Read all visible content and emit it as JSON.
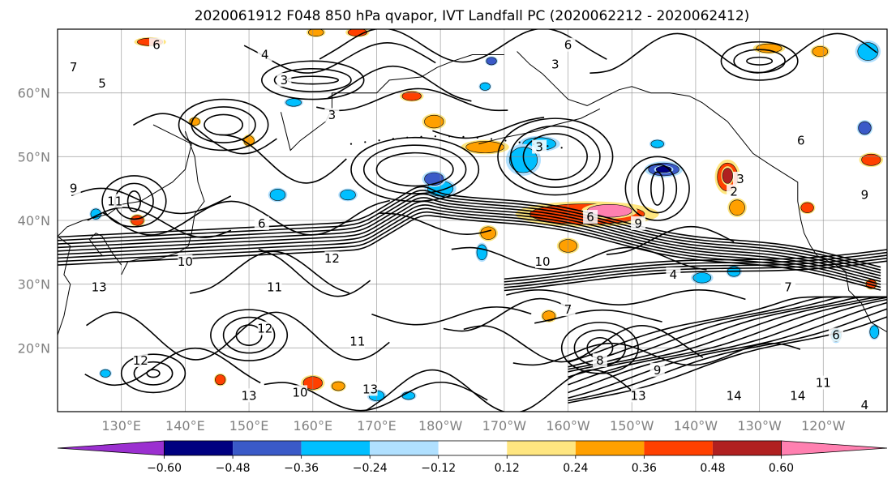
{
  "title": "2020061912 F048 850 hPa qvapor, IVT Landfall PC (2020062212 - 2020062412)",
  "lat_ticks": [
    {
      "value": 20,
      "label": "20°N"
    },
    {
      "value": 30,
      "label": "30°N"
    },
    {
      "value": 40,
      "label": "40°N"
    },
    {
      "value": 50,
      "label": "50°N"
    },
    {
      "value": 60,
      "label": "60°N"
    }
  ],
  "lon_ticks": [
    {
      "value": 130,
      "label": "130°E"
    },
    {
      "value": 140,
      "label": "140°E"
    },
    {
      "value": 150,
      "label": "150°E"
    },
    {
      "value": 160,
      "label": "160°E"
    },
    {
      "value": 170,
      "label": "170°E"
    },
    {
      "value": 180,
      "label": "180°W"
    },
    {
      "value": 190,
      "label": "170°W"
    },
    {
      "value": 200,
      "label": "160°W"
    },
    {
      "value": 210,
      "label": "150°W"
    },
    {
      "value": 220,
      "label": "140°W"
    },
    {
      "value": 230,
      "label": "130°W"
    },
    {
      "value": 240,
      "label": "120°W"
    }
  ],
  "map_extent": {
    "lon_min": 120,
    "lon_max": 250,
    "lat_min": 10,
    "lat_max": 70
  },
  "colorbar": {
    "colors": [
      "#9b30d0",
      "#000080",
      "#3a5ac8",
      "#00bfff",
      "#b0e0ff",
      "#ffffff",
      "#ffe680",
      "#ffa000",
      "#ff4000",
      "#b02020",
      "#ff80b0"
    ],
    "labels": [
      "−0.60",
      "−0.48",
      "−0.36",
      "−0.24",
      "−0.12",
      "0.12",
      "0.24",
      "0.36",
      "0.48",
      "0.60"
    ],
    "extend": "both"
  },
  "contour_labels": [
    {
      "text": "6",
      "lon": 135.5,
      "lat": 67.5
    },
    {
      "text": "4",
      "lon": 152.5,
      "lat": 66.0
    },
    {
      "text": "3",
      "lon": 155.5,
      "lat": 62.0
    },
    {
      "text": "5",
      "lon": 127.0,
      "lat": 61.5
    },
    {
      "text": "7",
      "lon": 122.5,
      "lat": 64.0
    },
    {
      "text": "3",
      "lon": 163.0,
      "lat": 56.5
    },
    {
      "text": "6",
      "lon": 152.0,
      "lat": 39.5
    },
    {
      "text": "9",
      "lon": 122.5,
      "lat": 45.0
    },
    {
      "text": "11",
      "lon": 129.0,
      "lat": 43.0
    },
    {
      "text": "10",
      "lon": 140.0,
      "lat": 33.5
    },
    {
      "text": "12",
      "lon": 163.0,
      "lat": 34.0
    },
    {
      "text": "11",
      "lon": 154.0,
      "lat": 29.5
    },
    {
      "text": "12",
      "lon": 152.5,
      "lat": 23.0
    },
    {
      "text": "13",
      "lon": 126.5,
      "lat": 29.5
    },
    {
      "text": "12",
      "lon": 133.0,
      "lat": 18.0
    },
    {
      "text": "13",
      "lon": 150.0,
      "lat": 12.5
    },
    {
      "text": "10",
      "lon": 158.0,
      "lat": 13.0
    },
    {
      "text": "11",
      "lon": 167.0,
      "lat": 21.0
    },
    {
      "text": "13",
      "lon": 169.0,
      "lat": 13.5
    },
    {
      "text": "3",
      "lon": 195.5,
      "lat": 51.5
    },
    {
      "text": "6",
      "lon": 200.0,
      "lat": 67.5
    },
    {
      "text": "3",
      "lon": 198.0,
      "lat": 64.5
    },
    {
      "text": "6",
      "lon": 203.5,
      "lat": 40.5
    },
    {
      "text": "9",
      "lon": 211.0,
      "lat": 39.5
    },
    {
      "text": "10",
      "lon": 196.0,
      "lat": 33.5
    },
    {
      "text": "7",
      "lon": 200.0,
      "lat": 26.0
    },
    {
      "text": "8",
      "lon": 205.0,
      "lat": 18.0
    },
    {
      "text": "9",
      "lon": 214.0,
      "lat": 16.5
    },
    {
      "text": "13",
      "lon": 211.0,
      "lat": 12.5
    },
    {
      "text": "14",
      "lon": 226.0,
      "lat": 12.5
    },
    {
      "text": "14",
      "lon": 236.0,
      "lat": 12.5
    },
    {
      "text": "11",
      "lon": 240.0,
      "lat": 14.5
    },
    {
      "text": "6",
      "lon": 242.0,
      "lat": 22.0
    },
    {
      "text": "3",
      "lon": 227.0,
      "lat": 46.5
    },
    {
      "text": "2",
      "lon": 226.0,
      "lat": 44.5
    },
    {
      "text": "7",
      "lon": 234.5,
      "lat": 29.5
    },
    {
      "text": "4",
      "lon": 216.5,
      "lat": 31.5
    },
    {
      "text": "6",
      "lon": 236.5,
      "lat": 52.5
    },
    {
      "text": "9",
      "lon": 246.5,
      "lat": 44.0
    },
    {
      "text": "4",
      "lon": 246.5,
      "lat": 11.0
    }
  ],
  "anomaly_patches": [
    {
      "lon": 203.0,
      "lat": 41.0,
      "rx": 9.0,
      "ry": 1.6,
      "level": 8
    },
    {
      "lon": 206.5,
      "lat": 41.5,
      "rx": 3.5,
      "ry": 1.0,
      "level": 10
    },
    {
      "lon": 225.0,
      "lat": 46.8,
      "rx": 1.6,
      "ry": 2.2,
      "level": 8
    },
    {
      "lon": 225.0,
      "lat": 47.0,
      "rx": 0.8,
      "ry": 1.2,
      "level": 9
    },
    {
      "lon": 226.5,
      "lat": 42.0,
      "rx": 1.2,
      "ry": 1.2,
      "level": 7
    },
    {
      "lon": 187.0,
      "lat": 51.5,
      "rx": 3.0,
      "ry": 0.9,
      "level": 7
    },
    {
      "lon": 215.0,
      "lat": 48.0,
      "rx": 2.4,
      "ry": 1.0,
      "level": 2
    },
    {
      "lon": 215.0,
      "lat": 48.0,
      "rx": 1.2,
      "ry": 0.5,
      "level": 1
    },
    {
      "lon": 195.5,
      "lat": 52.0,
      "rx": 2.6,
      "ry": 1.0,
      "level": 3
    },
    {
      "lon": 193.0,
      "lat": 49.5,
      "rx": 2.2,
      "ry": 2.0,
      "level": 3
    },
    {
      "lon": 180.0,
      "lat": 45.0,
      "rx": 2.0,
      "ry": 1.2,
      "level": 3
    },
    {
      "lon": 179.0,
      "lat": 46.5,
      "rx": 1.5,
      "ry": 1.0,
      "level": 2
    },
    {
      "lon": 165.5,
      "lat": 44.0,
      "rx": 1.2,
      "ry": 0.8,
      "level": 3
    },
    {
      "lon": 154.5,
      "lat": 44.0,
      "rx": 1.2,
      "ry": 0.9,
      "level": 3
    },
    {
      "lon": 175.5,
      "lat": 59.5,
      "rx": 1.5,
      "ry": 0.7,
      "level": 8
    },
    {
      "lon": 179.0,
      "lat": 55.5,
      "rx": 1.5,
      "ry": 1.0,
      "level": 7
    },
    {
      "lon": 134.5,
      "lat": 68.0,
      "rx": 2.0,
      "ry": 0.6,
      "level": 8
    },
    {
      "lon": 160.5,
      "lat": 69.5,
      "rx": 1.2,
      "ry": 0.6,
      "level": 7
    },
    {
      "lon": 167.0,
      "lat": 69.5,
      "rx": 1.5,
      "ry": 0.6,
      "level": 8
    },
    {
      "lon": 231.5,
      "lat": 67.0,
      "rx": 2.0,
      "ry": 0.7,
      "level": 7
    },
    {
      "lon": 239.5,
      "lat": 66.5,
      "rx": 1.2,
      "ry": 0.8,
      "level": 7
    },
    {
      "lon": 247.0,
      "lat": 66.5,
      "rx": 1.6,
      "ry": 1.4,
      "level": 3
    },
    {
      "lon": 246.5,
      "lat": 54.5,
      "rx": 1.0,
      "ry": 1.0,
      "level": 2
    },
    {
      "lon": 247.5,
      "lat": 49.5,
      "rx": 1.5,
      "ry": 0.9,
      "level": 8
    },
    {
      "lon": 237.5,
      "lat": 42.0,
      "rx": 1.0,
      "ry": 0.8,
      "level": 8
    },
    {
      "lon": 200.0,
      "lat": 36.0,
      "rx": 1.4,
      "ry": 1.0,
      "level": 7
    },
    {
      "lon": 221.0,
      "lat": 31.0,
      "rx": 1.4,
      "ry": 0.8,
      "level": 3
    },
    {
      "lon": 226.0,
      "lat": 32.0,
      "rx": 1.0,
      "ry": 0.8,
      "level": 3
    },
    {
      "lon": 187.5,
      "lat": 38.0,
      "rx": 1.2,
      "ry": 1.0,
      "level": 7
    },
    {
      "lon": 186.5,
      "lat": 35.0,
      "rx": 0.8,
      "ry": 1.2,
      "level": 3
    },
    {
      "lon": 197.0,
      "lat": 25.0,
      "rx": 1.0,
      "ry": 0.8,
      "level": 7
    },
    {
      "lon": 160.0,
      "lat": 14.5,
      "rx": 1.5,
      "ry": 1.0,
      "level": 8
    },
    {
      "lon": 164.0,
      "lat": 14.0,
      "rx": 1.0,
      "ry": 0.7,
      "level": 7
    },
    {
      "lon": 170.0,
      "lat": 12.5,
      "rx": 1.2,
      "ry": 0.8,
      "level": 3
    },
    {
      "lon": 175.0,
      "lat": 12.5,
      "rx": 1.0,
      "ry": 0.6,
      "level": 3
    },
    {
      "lon": 145.5,
      "lat": 15.0,
      "rx": 0.8,
      "ry": 0.8,
      "level": 8
    },
    {
      "lon": 127.5,
      "lat": 16.0,
      "rx": 0.8,
      "ry": 0.6,
      "level": 3
    },
    {
      "lon": 132.5,
      "lat": 40.0,
      "rx": 1.0,
      "ry": 0.8,
      "level": 8
    },
    {
      "lon": 126.0,
      "lat": 41.0,
      "rx": 0.8,
      "ry": 0.8,
      "level": 3
    },
    {
      "lon": 157.0,
      "lat": 58.5,
      "rx": 1.2,
      "ry": 0.6,
      "level": 3
    },
    {
      "lon": 187.0,
      "lat": 61.0,
      "rx": 0.8,
      "ry": 0.6,
      "level": 3
    },
    {
      "lon": 188.0,
      "lat": 65.0,
      "rx": 0.8,
      "ry": 0.6,
      "level": 2
    },
    {
      "lon": 141.5,
      "lat": 55.5,
      "rx": 0.8,
      "ry": 0.6,
      "level": 7
    },
    {
      "lon": 214.0,
      "lat": 52.0,
      "rx": 1.0,
      "ry": 0.6,
      "level": 3
    },
    {
      "lon": 150.0,
      "lat": 52.5,
      "rx": 0.8,
      "ry": 0.8,
      "level": 7
    },
    {
      "lon": 242.0,
      "lat": 22.0,
      "rx": 0.8,
      "ry": 1.0,
      "level": 3
    },
    {
      "lon": 248.0,
      "lat": 22.5,
      "rx": 0.7,
      "ry": 1.0,
      "level": 3
    },
    {
      "lon": 247.5,
      "lat": 30.0,
      "rx": 0.8,
      "ry": 0.7,
      "level": 8
    }
  ]
}
